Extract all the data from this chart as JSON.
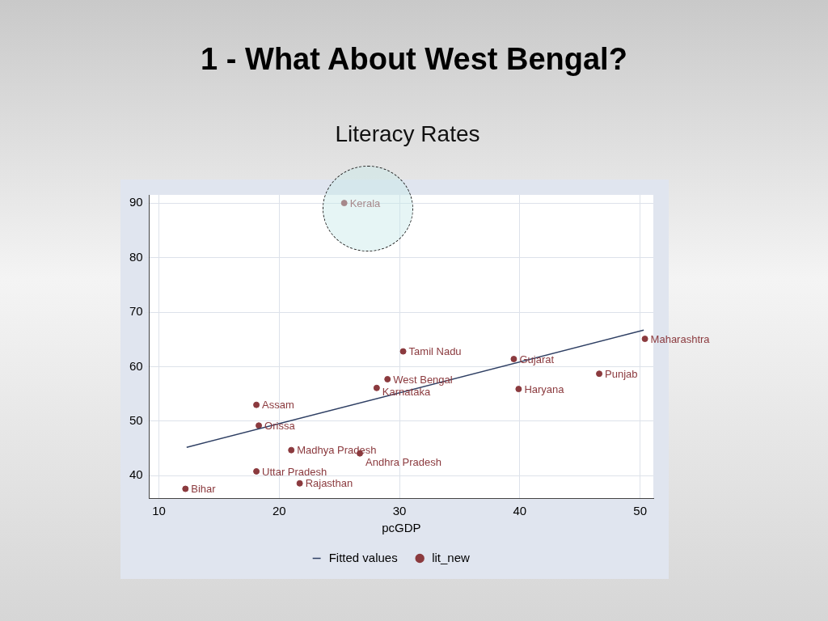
{
  "chart_data": {
    "type": "scatter",
    "title": "1 - What About West Bengal?",
    "subtitle": "Literacy Rates",
    "xlabel": "pcGDP",
    "xlim": [
      9.2,
      51.1
    ],
    "ylim": [
      35.9,
      91.5
    ],
    "xticks": [
      10,
      20,
      30,
      40,
      50
    ],
    "yticks": [
      40,
      50,
      60,
      70,
      80,
      90
    ],
    "grid": true,
    "legend": "bottom",
    "series": [
      {
        "name": "Fitted values",
        "type": "line",
        "marker": "none",
        "color": "#2e3f63",
        "x": [
          12.3,
          50.3
        ],
        "values": [
          45.2,
          66.7
        ]
      },
      {
        "name": "lit_new",
        "type": "scatter",
        "marker": "circle",
        "color": "#8b3a3e",
        "x": [
          25.4,
          50.4,
          30.3,
          39.5,
          46.6,
          29.0,
          28.1,
          39.9,
          18.1,
          18.3,
          21.0,
          26.7,
          18.1,
          21.7,
          12.2
        ],
        "values": [
          90.0,
          65.1,
          62.8,
          61.4,
          58.7,
          57.7,
          56.1,
          55.9,
          53.0,
          49.2,
          44.7,
          44.1,
          40.8,
          38.6,
          37.6
        ]
      }
    ],
    "annotations": [
      {
        "text": "Kerala",
        "x": 25.4,
        "y": 90.0
      },
      {
        "text": "Maharashtra",
        "x": 50.4,
        "y": 65.1
      },
      {
        "text": "Tamil Nadu",
        "x": 30.3,
        "y": 62.8
      },
      {
        "text": "Gujarat",
        "x": 39.5,
        "y": 61.4
      },
      {
        "text": "Punjab",
        "x": 46.6,
        "y": 58.7
      },
      {
        "text": "West Bengal",
        "x": 29.0,
        "y": 57.7
      },
      {
        "text": "Karnataka",
        "x": 28.1,
        "y": 56.1
      },
      {
        "text": "Haryana",
        "x": 39.9,
        "y": 55.9
      },
      {
        "text": "Assam",
        "x": 18.1,
        "y": 53.0
      },
      {
        "text": "Orissa",
        "x": 18.3,
        "y": 49.2
      },
      {
        "text": "Madhya Pradesh",
        "x": 21.0,
        "y": 44.7
      },
      {
        "text": "Andhra Pradesh",
        "x": 26.7,
        "y": 44.1
      },
      {
        "text": "Uttar Pradesh",
        "x": 18.1,
        "y": 40.8
      },
      {
        "text": "Rajasthan",
        "x": 21.7,
        "y": 38.6
      },
      {
        "text": "Bihar",
        "x": 12.2,
        "y": 37.6
      }
    ]
  }
}
